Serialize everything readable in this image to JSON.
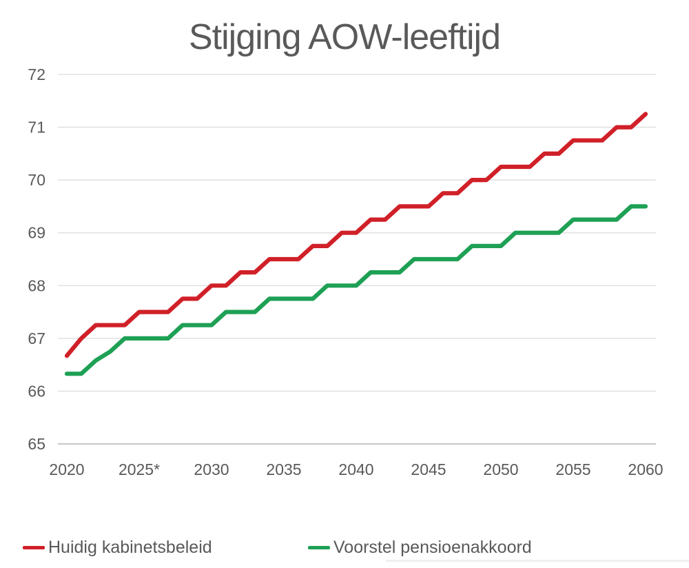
{
  "chart_data": {
    "type": "line",
    "title": "Stijging AOW-leeftijd",
    "x": [
      2020,
      2021,
      2022,
      2023,
      2024,
      2025,
      2026,
      2027,
      2028,
      2029,
      2030,
      2031,
      2032,
      2033,
      2034,
      2035,
      2036,
      2037,
      2038,
      2039,
      2040,
      2041,
      2042,
      2043,
      2044,
      2045,
      2046,
      2047,
      2048,
      2049,
      2050,
      2051,
      2052,
      2053,
      2054,
      2055,
      2056,
      2057,
      2058,
      2059,
      2060
    ],
    "series": [
      {
        "name": "Huidig kabinetsbeleid",
        "color": "#d02028",
        "values": [
          66.67,
          67,
          67.25,
          67.25,
          67.25,
          67.5,
          67.5,
          67.5,
          67.75,
          67.75,
          68,
          68,
          68.25,
          68.25,
          68.5,
          68.5,
          68.5,
          68.75,
          68.75,
          69,
          69,
          69.25,
          69.25,
          69.5,
          69.5,
          69.5,
          69.75,
          69.75,
          70,
          70,
          70.25,
          70.25,
          70.25,
          70.5,
          70.5,
          70.75,
          70.75,
          70.75,
          71,
          71,
          71.25
        ]
      },
      {
        "name": "Voorstel pensioenakkoord",
        "color": "#1ea055",
        "values": [
          66.33,
          66.33,
          66.58,
          66.75,
          67,
          67,
          67,
          67,
          67.25,
          67.25,
          67.25,
          67.5,
          67.5,
          67.5,
          67.75,
          67.75,
          67.75,
          67.75,
          68,
          68,
          68,
          68.25,
          68.25,
          68.25,
          68.5,
          68.5,
          68.5,
          68.5,
          68.75,
          68.75,
          68.75,
          69,
          69,
          69,
          69,
          69.25,
          69.25,
          69.25,
          69.25,
          69.5,
          69.5
        ]
      }
    ],
    "xticks": [
      "2020",
      "2025*",
      "2030",
      "2035",
      "2040",
      "2045",
      "2050",
      "2055",
      "2060"
    ],
    "yticks": [
      "65",
      "66",
      "67",
      "68",
      "69",
      "70",
      "71",
      "72"
    ],
    "xlim": [
      2020,
      2060
    ],
    "ylim": [
      65,
      72
    ],
    "xlabel": "",
    "ylabel": "",
    "grid": "horizontal",
    "legend_position": "bottom"
  },
  "style": {
    "text_color": "#595959",
    "grid_color": "#e2e2e2",
    "axis_line_color": "#bdbdbd",
    "background": "#ffffff"
  }
}
